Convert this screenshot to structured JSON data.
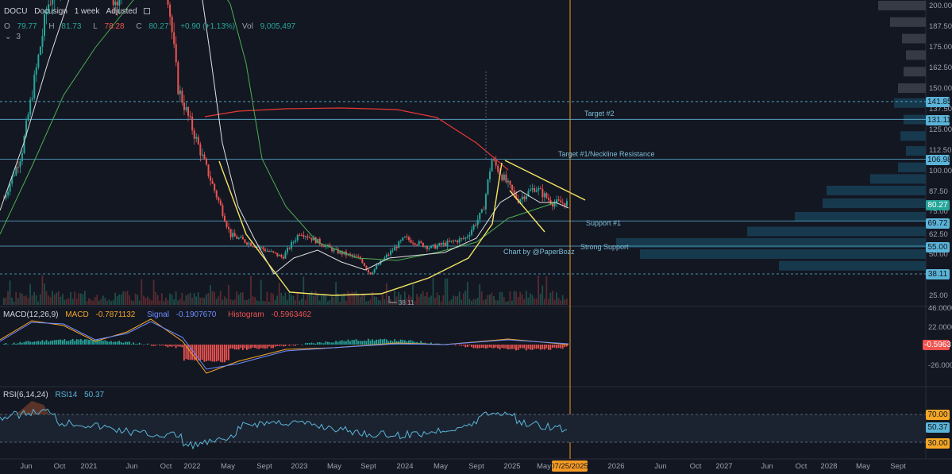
{
  "header": {
    "symbol": "DOCU",
    "name": "Docusign",
    "interval": "1 week",
    "adjust": "Adjusted",
    "open_label": "O",
    "open": "79.77",
    "high_label": "H",
    "high": "81.73",
    "low_label": "L",
    "low": "78.28",
    "close_label": "C",
    "close": "80.27",
    "change": "+0.90 (+1.13%)",
    "vol_label": "Vol",
    "volume": "9,005,497",
    "layers_count": "3"
  },
  "macd_panel": {
    "title": "MACD(12,26,9)",
    "macd_label": "MACD",
    "macd": "-0.7871132",
    "signal_label": "Signal",
    "signal": "-0.1907670",
    "hist_label": "Histogram",
    "hist": "-0.5963462",
    "ticks": [
      "46.0000",
      "22.0000",
      "-26.0000"
    ],
    "tag": "-0.5963"
  },
  "rsi_panel": {
    "title": "RSI(6,14,24)",
    "rsi_label": "RSI14",
    "rsi": "50.37",
    "tags": [
      "70.00",
      "50.37",
      "30.00"
    ]
  },
  "price_tags": {
    "t141": "141.85",
    "t131": "131.11",
    "t107": "106.98",
    "t80": "80.27",
    "t70": "69.72",
    "t55": "55.00",
    "t38": "38.11"
  },
  "annotations": {
    "target2": "Target #2",
    "target1": "Target #1/Neckline Resistance",
    "support1": "Support #1",
    "strong": "Strong Support",
    "credit": "Chart by @PaperBozz",
    "low_marker": "38.11"
  },
  "colors": {
    "background": "#131722",
    "up": "#26a69a",
    "down": "#ef5350",
    "sma_white": "#e0e0e0",
    "sma_green": "#4caf50",
    "sma_red": "#e53935",
    "pattern": "#f5e663",
    "level_line": "#5bb4d8",
    "date_line": "#f59a23"
  },
  "chart_data": {
    "type": "candlestick",
    "symbol": "DOCU",
    "interval": "1 week",
    "y_ticks": [
      "200.00",
      "187.50",
      "175.00",
      "162.50",
      "150.00",
      "137.50",
      "125.00",
      "112.50",
      "100.00",
      "87.50",
      "75.00",
      "62.50",
      "50.00",
      "25.00"
    ],
    "x_ticks": [
      "Jun",
      "Oct",
      "2021",
      "Jun",
      "Oct",
      "2022",
      "May",
      "Sept",
      "2023",
      "May",
      "Sept",
      "2024",
      "May",
      "Sept",
      "2025",
      "May",
      "07/25/2025",
      "2026",
      "Jun",
      "Oct",
      "2027",
      "Jun",
      "Oct",
      "2028",
      "May",
      "Sept"
    ],
    "horizontal_levels": [
      141.85,
      131.11,
      106.98,
      69.72,
      55.0,
      38.11
    ],
    "last_close": 80.27,
    "cursor_date": "07/25/2025",
    "price_path": [
      {
        "x": "2020-03",
        "y": 70
      },
      {
        "x": "2020-06",
        "y": 110
      },
      {
        "x": "2020-09",
        "y": 200
      },
      {
        "x": "2021-01",
        "y": 245
      },
      {
        "x": "2021-05",
        "y": 200
      },
      {
        "x": "2021-09",
        "y": 295
      },
      {
        "x": "2021-12",
        "y": 150
      },
      {
        "x": "2022-03",
        "y": 105
      },
      {
        "x": "2022-06",
        "y": 62
      },
      {
        "x": "2022-09",
        "y": 55
      },
      {
        "x": "2022-12",
        "y": 48
      },
      {
        "x": "2023-02",
        "y": 64
      },
      {
        "x": "2023-06",
        "y": 52
      },
      {
        "x": "2023-09",
        "y": 47
      },
      {
        "x": "2023-10",
        "y": 38.11
      },
      {
        "x": "2024-02",
        "y": 60
      },
      {
        "x": "2024-05",
        "y": 54
      },
      {
        "x": "2024-09",
        "y": 60
      },
      {
        "x": "2024-11",
        "y": 75
      },
      {
        "x": "2024-12",
        "y": 107
      },
      {
        "x": "2025-03",
        "y": 82
      },
      {
        "x": "2025-05",
        "y": 90
      },
      {
        "x": "2025-07",
        "y": 80.27
      }
    ],
    "rsi_levels": [
      70,
      30
    ],
    "rsi_last": 50.37,
    "macd_last": -0.7871132,
    "signal_last": -0.190767,
    "histogram_last": -0.5963462
  }
}
